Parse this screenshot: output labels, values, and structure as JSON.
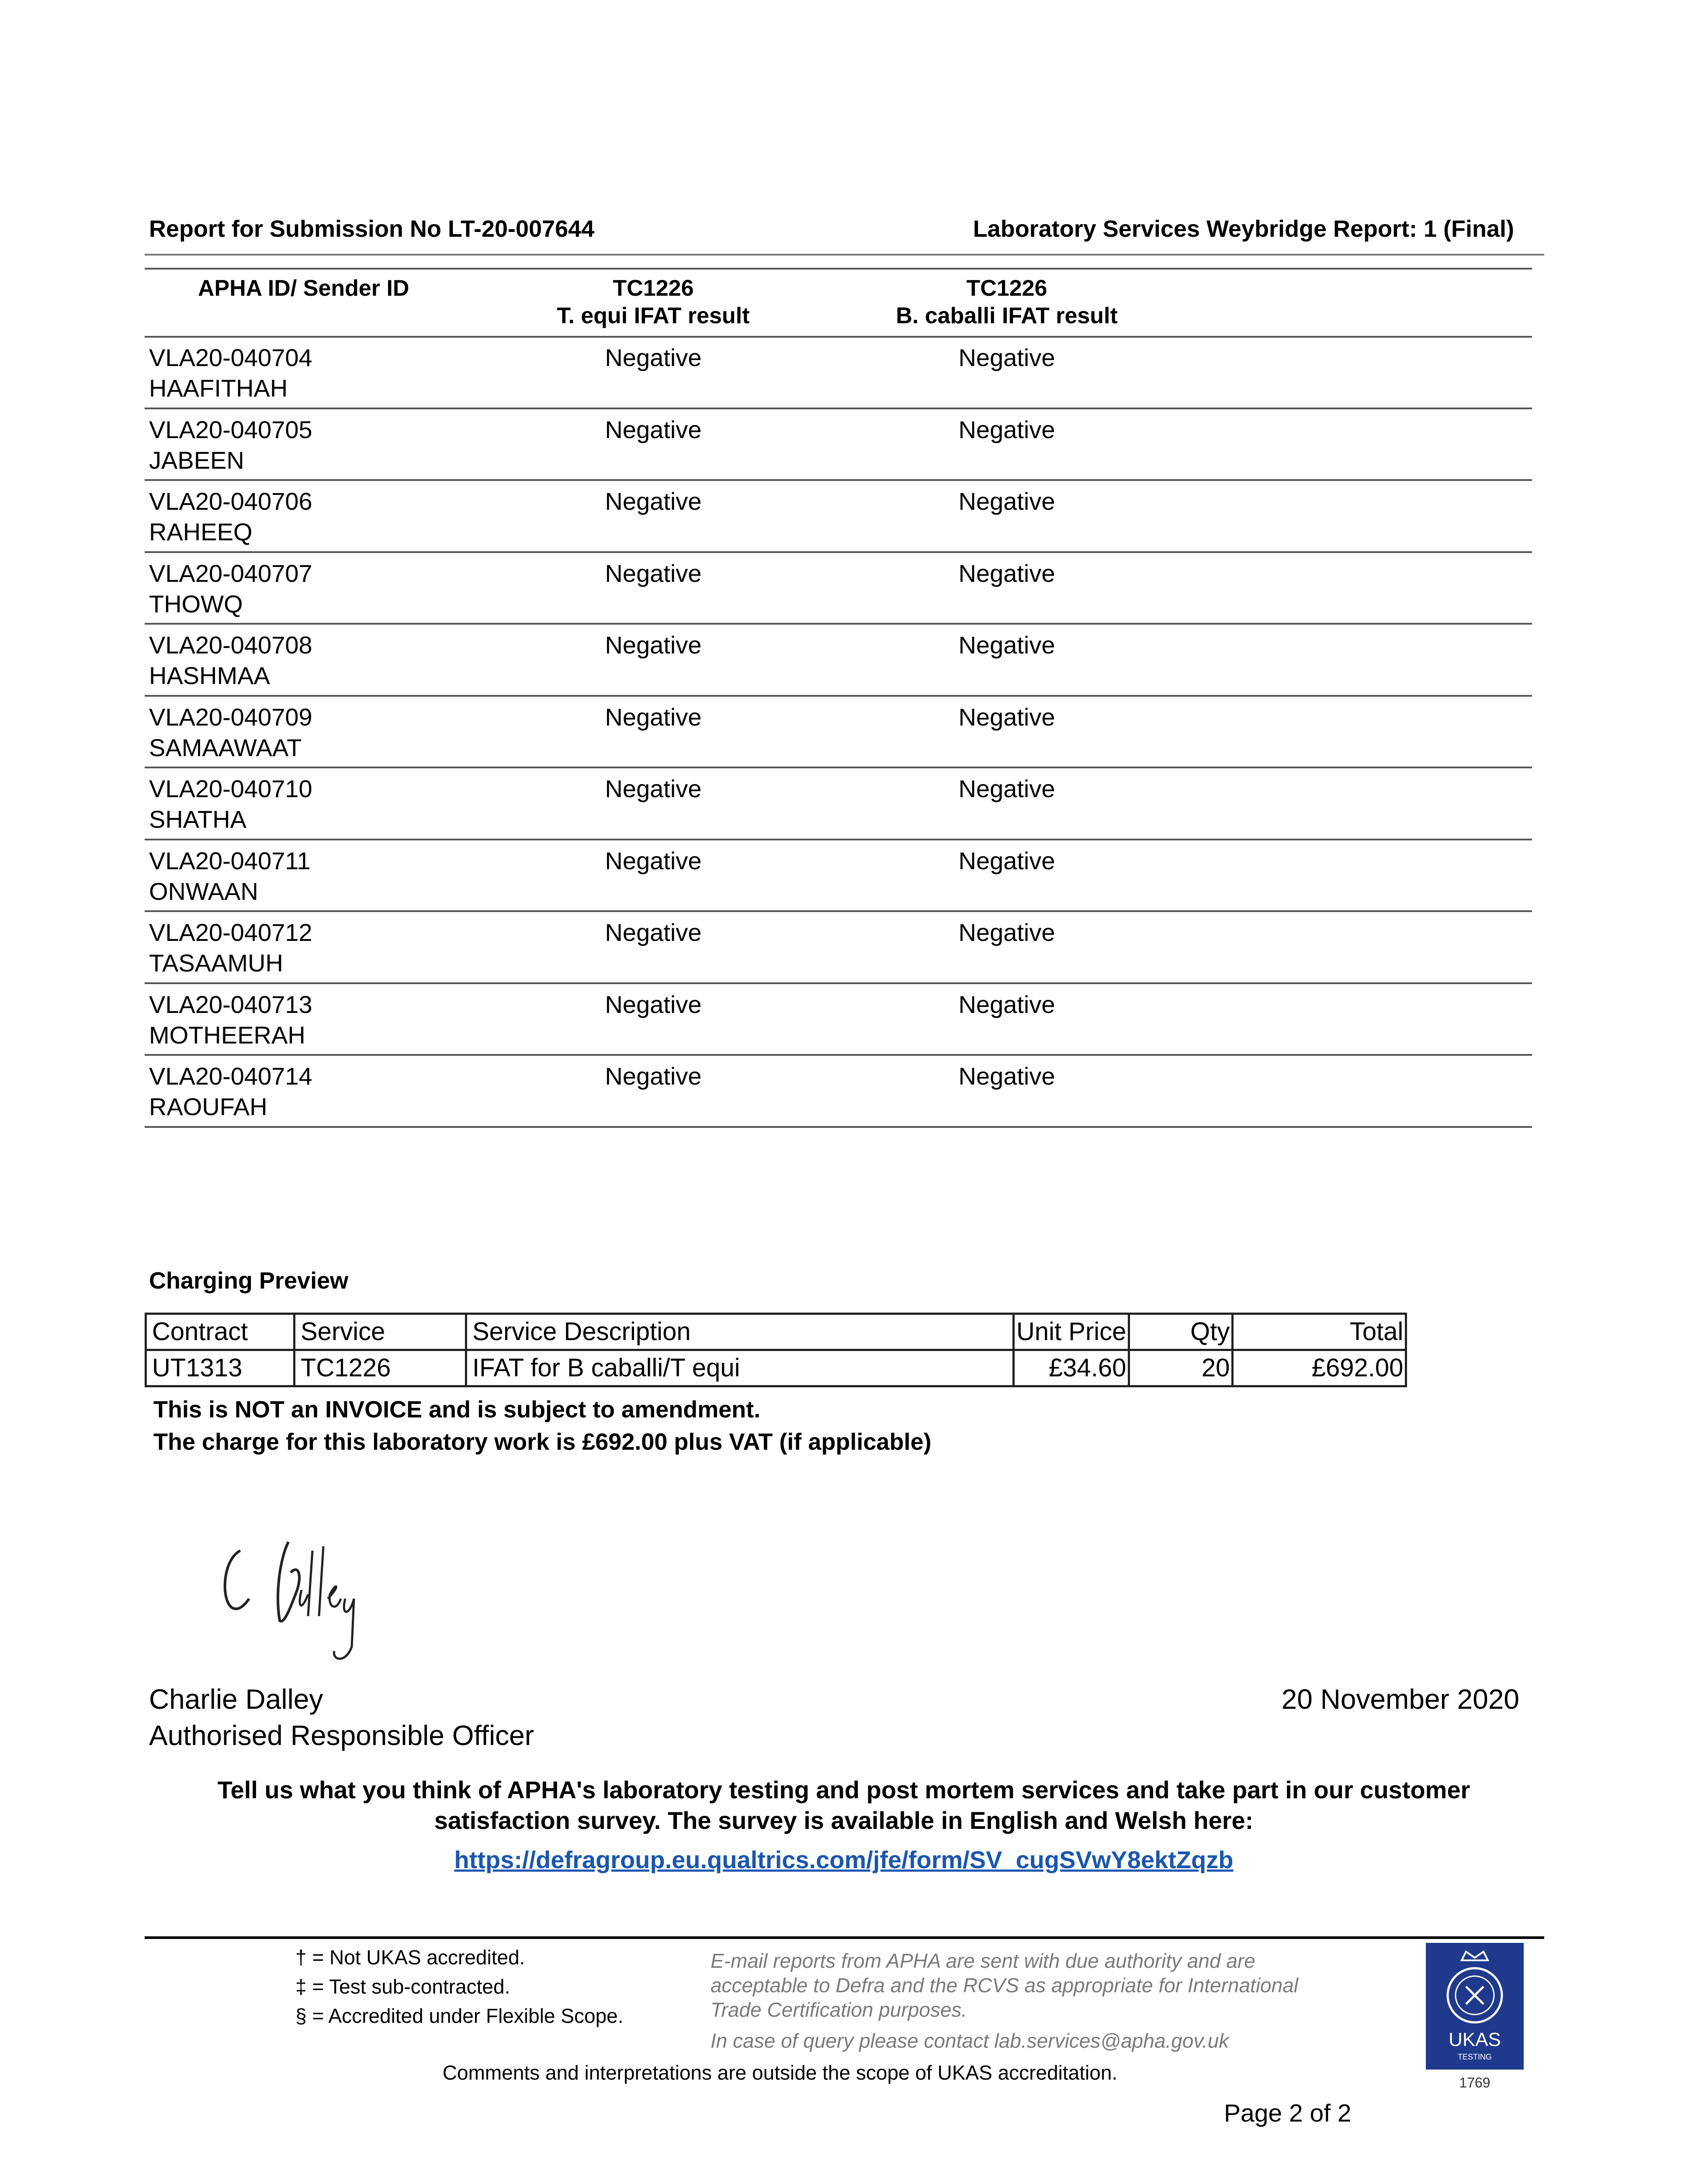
{
  "header": {
    "submission": "Report for Submission No LT-20-007644",
    "report": "Laboratory Services Weybridge Report: 1 (Final)"
  },
  "results_table": {
    "columns": [
      {
        "line1": "APHA ID/ Sender ID",
        "line2": ""
      },
      {
        "line1": "TC1226",
        "line2": "T. equi IFAT result"
      },
      {
        "line1": "TC1226",
        "line2": "B. caballi IFAT result"
      }
    ],
    "rows": [
      {
        "id": "VLA20-040704",
        "name": "HAAFITHAH",
        "t_equi": "Negative",
        "b_caballi": "Negative"
      },
      {
        "id": "VLA20-040705",
        "name": "JABEEN",
        "t_equi": "Negative",
        "b_caballi": "Negative"
      },
      {
        "id": "VLA20-040706",
        "name": "RAHEEQ",
        "t_equi": "Negative",
        "b_caballi": "Negative"
      },
      {
        "id": "VLA20-040707",
        "name": "THOWQ",
        "t_equi": "Negative",
        "b_caballi": "Negative"
      },
      {
        "id": "VLA20-040708",
        "name": "HASHMAA",
        "t_equi": "Negative",
        "b_caballi": "Negative"
      },
      {
        "id": "VLA20-040709",
        "name": "SAMAAWAAT",
        "t_equi": "Negative",
        "b_caballi": "Negative"
      },
      {
        "id": "VLA20-040710",
        "name": "SHATHA",
        "t_equi": "Negative",
        "b_caballi": "Negative"
      },
      {
        "id": "VLA20-040711",
        "name": "ONWAAN",
        "t_equi": "Negative",
        "b_caballi": "Negative"
      },
      {
        "id": "VLA20-040712",
        "name": "TASAAMUH",
        "t_equi": "Negative",
        "b_caballi": "Negative"
      },
      {
        "id": "VLA20-040713",
        "name": "MOTHEERAH",
        "t_equi": "Negative",
        "b_caballi": "Negative"
      },
      {
        "id": "VLA20-040714",
        "name": "RAOUFAH",
        "t_equi": "Negative",
        "b_caballi": "Negative"
      }
    ]
  },
  "charging": {
    "title": "Charging Preview",
    "headers": [
      "Contract",
      "Service",
      "Service Description",
      "Unit Price",
      "Qty",
      "Total"
    ],
    "row": [
      "UT1313",
      "TC1226",
      "IFAT for B caballi/T equi",
      "£34.60",
      "20",
      "£692.00"
    ],
    "note1": "This is NOT an INVOICE and is subject to amendment.",
    "note2": "The charge for this laboratory work is £692.00 plus VAT (if applicable)"
  },
  "signature": {
    "signature_text": "C Dalley",
    "name": "Charlie Dalley",
    "role": "Authorised Responsible Officer",
    "date": "20 November 2020"
  },
  "survey": {
    "line1": "Tell us what you think of APHA's laboratory testing and post mortem services and take part in our customer",
    "line2": "satisfaction survey.  The survey is available in English and Welsh here:",
    "link": "https://defragroup.eu.qualtrics.com/jfe/form/SV_cugSVwY8ektZqzb",
    "link_color": "#1a56b0"
  },
  "footer": {
    "legend": [
      "† = Not UKAS accredited.",
      "‡ = Test sub-contracted.",
      "§ = Accredited under Flexible Scope."
    ],
    "email_note": [
      "E-mail reports from APHA are sent with due authority and are",
      "acceptable to Defra and the RCVS as appropriate for International",
      "Trade Certification purposes."
    ],
    "contact": "In case of query please contact lab.services@apha.gov.uk",
    "comments": "Comments and interpretations are outside the scope of UKAS accreditation.",
    "logo": {
      "text": "UKAS",
      "sub": "TESTING",
      "number": "1769",
      "color": "#1f3a8c"
    },
    "page": "Page 2 of  2"
  }
}
